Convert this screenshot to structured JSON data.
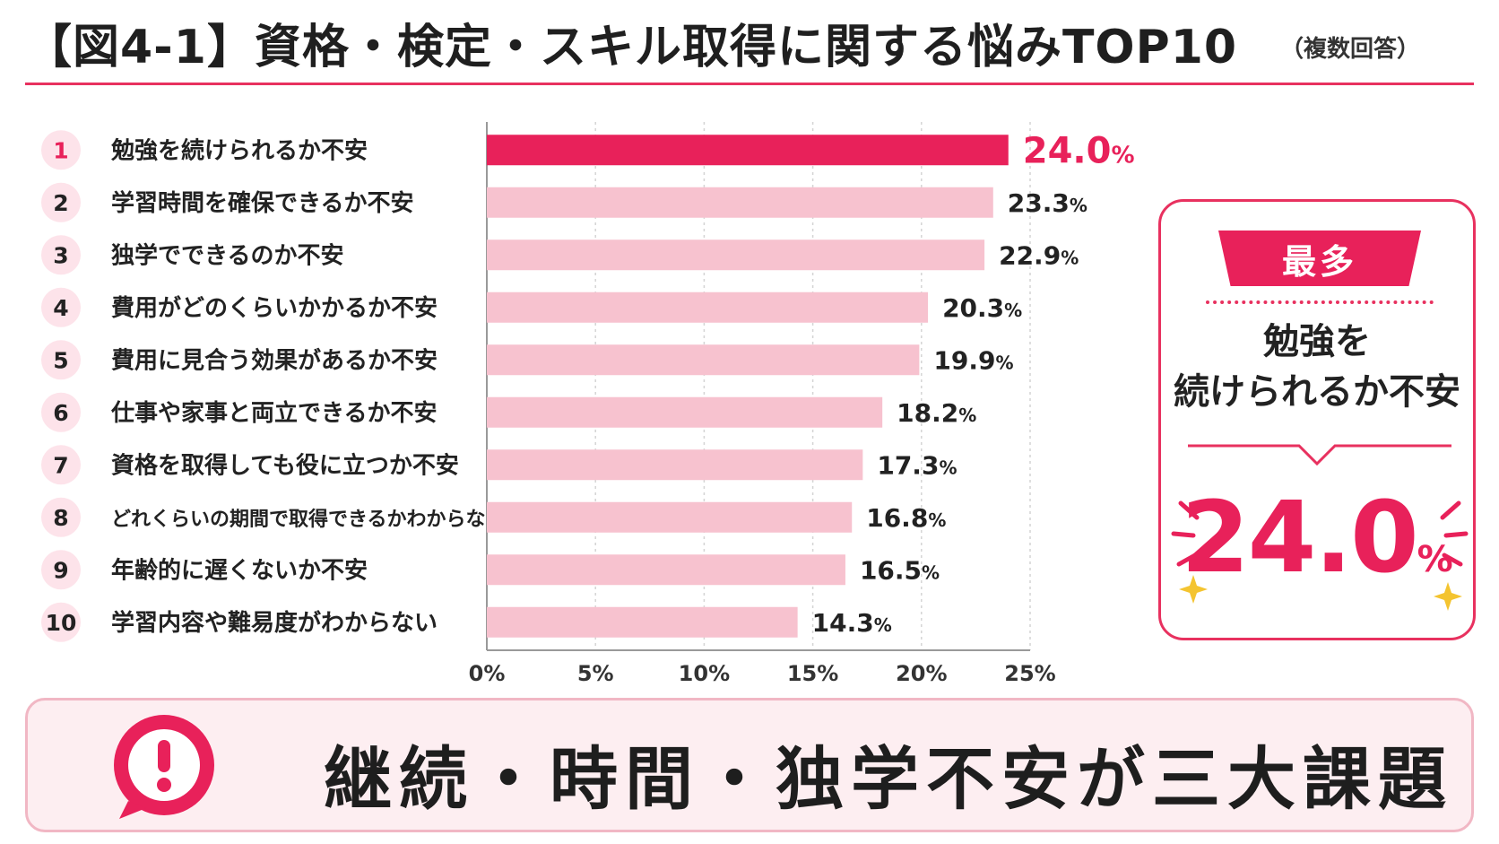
{
  "header": {
    "title": "【図4-1】資格・検定・スキル取得に関する悩みTOP10",
    "note": "（複数回答）"
  },
  "colors": {
    "accent": "#e8215a",
    "bar_top": "#e8215a",
    "bar_rest": "#f7c2cf",
    "rank_bg": "#fde3ea",
    "banner_bg": "#fdeef1"
  },
  "chart_data": {
    "type": "bar",
    "orientation": "horizontal",
    "ranks": [
      "1",
      "2",
      "3",
      "4",
      "5",
      "6",
      "7",
      "8",
      "9",
      "10"
    ],
    "categories": [
      "勉強を続けられるか不安",
      "学習時間を確保できるか不安",
      "独学でできるのか不安",
      "費用がどのくらいかかるか不安",
      "費用に見合う効果があるか不安",
      "仕事や家事と両立できるか不安",
      "資格を取得しても役に立つか不安",
      "どれくらいの期間で取得できるかわからない",
      "年齢的に遅くないか不安",
      "学習内容や難易度がわからない"
    ],
    "values": [
      24.0,
      23.3,
      22.9,
      20.3,
      19.9,
      18.2,
      17.3,
      16.8,
      16.5,
      14.3
    ],
    "value_labels": [
      "24.0",
      "23.3",
      "22.9",
      "20.3",
      "19.9",
      "18.2",
      "17.3",
      "16.8",
      "16.5",
      "14.3"
    ],
    "unit": "%",
    "xlim": [
      0,
      25
    ],
    "x_ticks": [
      0,
      5,
      10,
      15,
      20,
      25
    ],
    "x_tick_labels": [
      "0%",
      "5%",
      "10%",
      "15%",
      "20%",
      "25%"
    ],
    "grid": "vertical-dotted",
    "highlight_index": 0
  },
  "callout": {
    "ribbon": "最多",
    "text": "勉強を\n続けられるか不安",
    "value": "24.0",
    "unit": "%"
  },
  "banner": {
    "icon": "exclamation-bubble-icon",
    "text": "継続・時間・独学不安が三大課題"
  }
}
